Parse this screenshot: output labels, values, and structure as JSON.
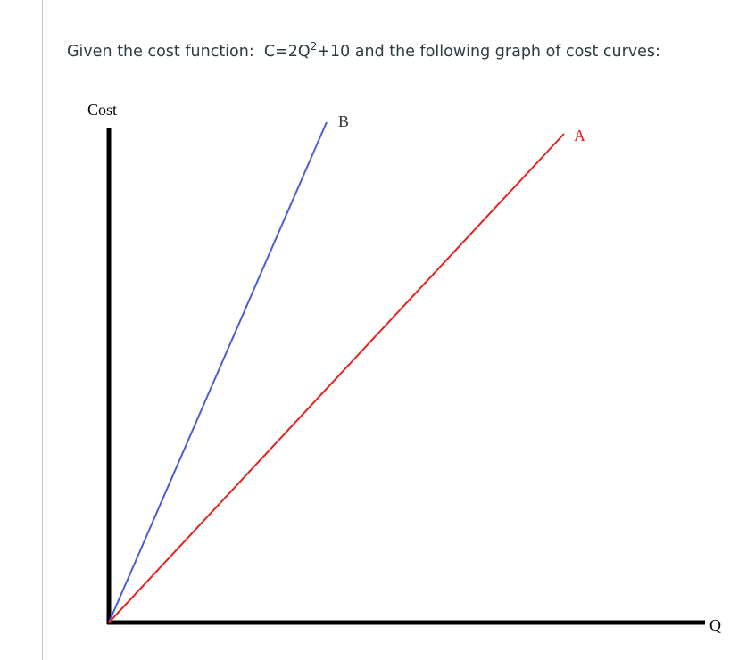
{
  "question": {
    "text_before": "Given the cost function:  C=2Q",
    "superscript": "2",
    "text_after": "+10 and the following graph of cost curves:"
  },
  "diagram": {
    "y_axis_label": "Cost",
    "x_axis_label": "Q",
    "curves": [
      {
        "label": "B",
        "color": "#4a5fd4"
      },
      {
        "label": "A",
        "color": "#e8201f"
      }
    ]
  }
}
